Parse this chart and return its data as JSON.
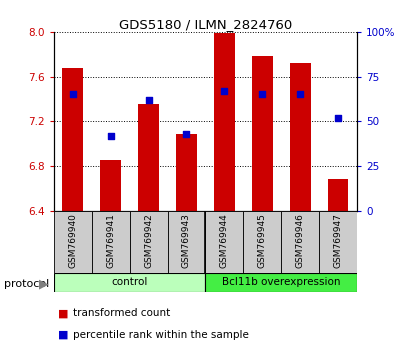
{
  "title": "GDS5180 / ILMN_2824760",
  "samples": [
    "GSM769940",
    "GSM769941",
    "GSM769942",
    "GSM769943",
    "GSM769944",
    "GSM769945",
    "GSM769946",
    "GSM769947"
  ],
  "transformed_count": [
    7.68,
    6.85,
    7.35,
    7.09,
    7.99,
    7.78,
    7.72,
    6.68
  ],
  "percentile_rank": [
    65,
    42,
    62,
    43,
    67,
    65,
    65,
    52
  ],
  "ylim_left": [
    6.4,
    8.0
  ],
  "ylim_right": [
    0,
    100
  ],
  "yticks_left": [
    6.4,
    6.8,
    7.2,
    7.6,
    8.0
  ],
  "yticks_right": [
    0,
    25,
    50,
    75,
    100
  ],
  "ytick_labels_right": [
    "0",
    "25",
    "50",
    "75",
    "100%"
  ],
  "bar_color": "#cc0000",
  "dot_color": "#0000cc",
  "bar_bottom": 6.4,
  "group_control_color": "#bbffbb",
  "group_overexp_color": "#44ee44",
  "groups": [
    {
      "label": "control",
      "start": 0,
      "end": 4,
      "color": "#bbffbb"
    },
    {
      "label": "Bcl11b overexpression",
      "start": 4,
      "end": 8,
      "color": "#44ee44"
    }
  ],
  "legend": [
    {
      "color": "#cc0000",
      "label": "transformed count"
    },
    {
      "color": "#0000cc",
      "label": "percentile rank within the sample"
    }
  ],
  "ylabel_left_color": "#cc0000",
  "ylabel_right_color": "#0000cc",
  "sample_box_color": "#cccccc",
  "background_color": "#ffffff"
}
